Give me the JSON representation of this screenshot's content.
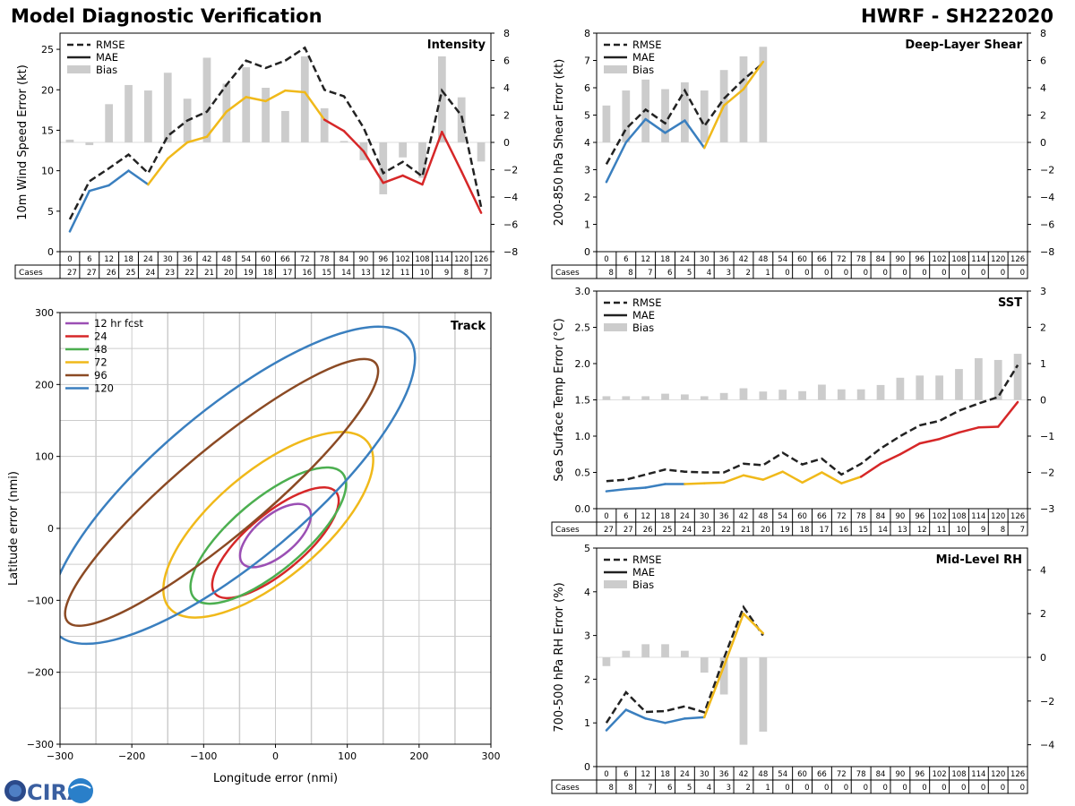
{
  "header": {
    "left_title": "Model Diagnostic Verification",
    "right_title": "HWRF - SH222020"
  },
  "logo": {
    "text": "CIRA"
  },
  "colors": {
    "rmse": "#222222",
    "mae_early": "#3a7fbf",
    "mae_mid": "#f0b91a",
    "mae_late": "#d62728",
    "bias": "#cccccc",
    "grid": "#cccccc",
    "track_12": "#9b4fb4",
    "track_24": "#d62728",
    "track_48": "#4caf50",
    "track_72": "#f0b91a",
    "track_96": "#8b4a24",
    "track_120": "#3a7fbf"
  },
  "chart_data": [
    {
      "id": "intensity",
      "type": "line",
      "title": "Intensity",
      "ylabel": "10m Wind Speed Error (kt)",
      "ylim": [
        0,
        27
      ],
      "yticks": [
        0,
        5,
        10,
        15,
        20,
        25
      ],
      "y2lim": [
        -8,
        8
      ],
      "y2ticks": [
        -8,
        -6,
        -4,
        -2,
        0,
        2,
        4,
        6,
        8
      ],
      "legend": [
        "RMSE",
        "MAE",
        "Bias"
      ],
      "x": [
        0,
        6,
        12,
        18,
        24,
        30,
        36,
        42,
        48,
        54,
        60,
        66,
        72,
        78,
        84,
        90,
        96,
        102,
        108,
        114,
        120,
        126
      ],
      "rmse": [
        4.0,
        8.7,
        10.3,
        12.0,
        9.7,
        14.3,
        16.2,
        17.3,
        20.6,
        23.6,
        22.7,
        23.6,
        25.2,
        20.0,
        19.2,
        15.3,
        9.7,
        11.1,
        9.3,
        19.9,
        16.8,
        5.5
      ],
      "mae": [
        2.5,
        7.5,
        8.2,
        10.0,
        8.3,
        11.5,
        13.5,
        14.2,
        17.3,
        19.1,
        18.6,
        19.9,
        19.7,
        16.3,
        14.9,
        12.4,
        8.5,
        9.4,
        8.3,
        14.8,
        9.9,
        4.8
      ],
      "bias": [
        0.2,
        -0.2,
        2.8,
        4.2,
        3.8,
        5.1,
        3.2,
        6.2,
        4.3,
        5.5,
        4.0,
        2.3,
        6.3,
        2.5,
        0.1,
        -1.3,
        -3.8,
        -1.1,
        -2.6,
        6.3,
        3.3,
        -1.4
      ],
      "cases": [
        27,
        27,
        26,
        25,
        24,
        23,
        22,
        21,
        20,
        19,
        18,
        17,
        16,
        15,
        14,
        13,
        12,
        11,
        10,
        9,
        8,
        7
      ]
    },
    {
      "id": "shear",
      "type": "line",
      "title": "Deep-Layer Shear",
      "ylabel": "200-850 hPa Shear Error (kt)",
      "ylim": [
        0,
        8
      ],
      "yticks": [
        0,
        1,
        2,
        3,
        4,
        5,
        6,
        7,
        8
      ],
      "y2lim": [
        -8,
        8
      ],
      "y2ticks": [
        -8,
        -6,
        -4,
        -2,
        0,
        2,
        4,
        6,
        8
      ],
      "legend": [
        "RMSE",
        "MAE",
        "Bias"
      ],
      "x": [
        0,
        6,
        12,
        18,
        24,
        30,
        36,
        42,
        48,
        54,
        60,
        66,
        72,
        78,
        84,
        90,
        96,
        102,
        108,
        114,
        120,
        126
      ],
      "rmse": [
        3.2,
        4.5,
        5.2,
        4.7,
        5.9,
        4.6,
        5.6,
        6.3,
        6.9
      ],
      "mae": [
        2.55,
        4.0,
        4.85,
        4.35,
        4.8,
        3.8,
        5.35,
        5.95,
        6.95
      ],
      "bias": [
        2.7,
        3.8,
        4.6,
        3.9,
        4.4,
        3.8,
        5.3,
        6.3,
        7.0,
        0,
        0,
        0,
        0,
        0,
        0,
        0,
        0,
        0,
        0,
        0,
        0,
        0
      ],
      "cases": [
        8,
        8,
        7,
        6,
        5,
        4,
        3,
        2,
        1,
        0,
        0,
        0,
        0,
        0,
        0,
        0,
        0,
        0,
        0,
        0,
        0,
        0
      ]
    },
    {
      "id": "sst",
      "type": "line",
      "title": "SST",
      "ylabel": "Sea Surface Temp Error (°C)",
      "ylim": [
        0,
        3
      ],
      "yticks": [
        "0.0",
        "0.5",
        "1.0",
        "1.5",
        "2.0",
        "2.5",
        "3.0"
      ],
      "y2lim": [
        -3,
        3
      ],
      "y2ticks": [
        -3,
        -2,
        -1,
        0,
        1,
        2,
        3
      ],
      "legend": [
        "RMSE",
        "MAE",
        "Bias"
      ],
      "x": [
        0,
        6,
        12,
        18,
        24,
        30,
        36,
        42,
        48,
        54,
        60,
        66,
        72,
        78,
        84,
        90,
        96,
        102,
        108,
        114,
        120,
        126
      ],
      "rmse": [
        0.38,
        0.4,
        0.47,
        0.54,
        0.51,
        0.5,
        0.5,
        0.62,
        0.6,
        0.77,
        0.61,
        0.69,
        0.47,
        0.62,
        0.83,
        1.0,
        1.15,
        1.21,
        1.35,
        1.45,
        1.54,
        1.98
      ],
      "mae": [
        0.24,
        0.27,
        0.29,
        0.34,
        0.34,
        0.35,
        0.36,
        0.46,
        0.4,
        0.51,
        0.36,
        0.5,
        0.35,
        0.44,
        0.62,
        0.75,
        0.9,
        0.96,
        1.05,
        1.12,
        1.13,
        1.47
      ],
      "bias": [
        0.1,
        0.1,
        0.1,
        0.17,
        0.15,
        0.1,
        0.19,
        0.32,
        0.23,
        0.28,
        0.24,
        0.42,
        0.29,
        0.29,
        0.41,
        0.61,
        0.67,
        0.67,
        0.85,
        1.15,
        1.1,
        1.27
      ],
      "cases": [
        27,
        27,
        26,
        25,
        24,
        23,
        22,
        21,
        20,
        19,
        18,
        17,
        16,
        15,
        14,
        13,
        12,
        11,
        10,
        9,
        8,
        7
      ]
    },
    {
      "id": "rh",
      "type": "line",
      "title": "Mid-Level RH",
      "ylabel": "700-500 hPa RH Error (%)",
      "ylim": [
        0,
        5
      ],
      "yticks": [
        0,
        1,
        2,
        3,
        4,
        5
      ],
      "y2lim": [
        -5,
        5
      ],
      "y2ticks": [
        -4,
        -2,
        0,
        2,
        4
      ],
      "legend": [
        "RMSE",
        "MAE",
        "Bias"
      ],
      "x": [
        0,
        6,
        12,
        18,
        24,
        30,
        36,
        42,
        48,
        54,
        60,
        66,
        72,
        78,
        84,
        90,
        96,
        102,
        108,
        114,
        120,
        126
      ],
      "rmse": [
        1.0,
        1.7,
        1.25,
        1.27,
        1.38,
        1.24,
        2.48,
        3.65,
        3.0
      ],
      "mae": [
        0.83,
        1.3,
        1.1,
        1.0,
        1.1,
        1.13,
        2.3,
        3.5,
        3.05
      ],
      "bias": [
        -0.4,
        0.3,
        0.6,
        0.6,
        0.3,
        -0.7,
        -1.7,
        -4.0,
        -3.4,
        0,
        0,
        0,
        0,
        0,
        0,
        0,
        0,
        0,
        0,
        0,
        0,
        0
      ],
      "cases": [
        8,
        8,
        7,
        6,
        5,
        4,
        3,
        2,
        1,
        0,
        0,
        0,
        0,
        0,
        0,
        0,
        0,
        0,
        0,
        0,
        0,
        0
      ]
    },
    {
      "id": "track",
      "type": "ellipse",
      "title": "Track",
      "xlabel": "Longitude error (nmi)",
      "ylabel": "Latitude error (nmi)",
      "xlim": [
        -300,
        300
      ],
      "ylim": [
        -300,
        300
      ],
      "xticks": [
        -300,
        -200,
        -100,
        0,
        100,
        200,
        300
      ],
      "yticks": [
        -300,
        -200,
        -100,
        0,
        100,
        200,
        300
      ],
      "legend": [
        "12 hr fcst",
        "24",
        "48",
        "72",
        "96",
        "120"
      ],
      "ellipses": [
        {
          "label": "12 hr fcst",
          "cx": 0,
          "cy": -10,
          "rx": 60,
          "ry": 28,
          "angle": -40
        },
        {
          "label": "24",
          "cx": 0,
          "cy": -20,
          "rx": 110,
          "ry": 40,
          "angle": -40
        },
        {
          "label": "48",
          "cx": -10,
          "cy": -10,
          "rx": 135,
          "ry": 50,
          "angle": -40
        },
        {
          "label": "72",
          "cx": -10,
          "cy": 5,
          "rx": 180,
          "ry": 75,
          "angle": -40
        },
        {
          "label": "96",
          "cx": -75,
          "cy": 50,
          "rx": 280,
          "ry": 60,
          "angle": -40
        },
        {
          "label": "120",
          "cx": -60,
          "cy": 60,
          "rx": 320,
          "ry": 105,
          "angle": -40
        }
      ]
    }
  ]
}
